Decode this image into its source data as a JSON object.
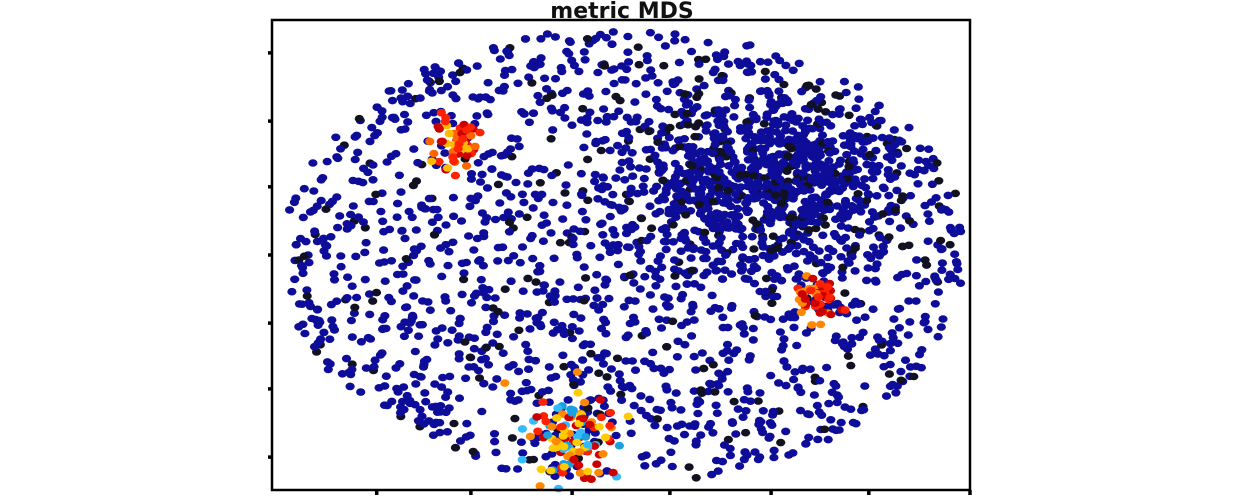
{
  "chart_data": {
    "type": "scatter",
    "title": "metric MDS",
    "xlabel": "",
    "ylabel": "",
    "xlim": [
      -1.0,
      1.0
    ],
    "ylim": [
      -1.0,
      1.0
    ],
    "xticks": [
      -0.7,
      -0.43,
      -0.14,
      0.14,
      0.43,
      0.71,
      1.0
    ],
    "yticks": [
      -0.86,
      -0.57,
      -0.29,
      0.0,
      0.29,
      0.57,
      0.86
    ],
    "xticks_labeled": false,
    "yticks_labeled": false,
    "grid": false,
    "legend": "none",
    "background_cloud": {
      "color": "#0d0d99",
      "dark_color": "#111122",
      "approx_count": 2600,
      "x_range": [
        -0.95,
        0.98
      ],
      "y_range": [
        -0.95,
        0.95
      ],
      "dense_region_center": [
        0.43,
        0.3
      ]
    },
    "clusters": [
      {
        "center": [
          -0.47,
          0.47
        ],
        "spread": [
          0.06,
          0.09
        ],
        "count": 55,
        "colors": [
          "#ff2200",
          "#cc0000",
          "#ffbb00",
          "#ff6600"
        ]
      },
      {
        "center": [
          0.56,
          -0.17
        ],
        "spread": [
          0.05,
          0.08
        ],
        "count": 45,
        "colors": [
          "#ff2200",
          "#cc0000",
          "#ff8800"
        ]
      },
      {
        "center": [
          -0.13,
          -0.76
        ],
        "spread": [
          0.1,
          0.17
        ],
        "count": 110,
        "colors": [
          "#ff2200",
          "#cc0000",
          "#ffcc00",
          "#ff8800",
          "#33bbff",
          "#1a9fe0"
        ]
      }
    ]
  }
}
